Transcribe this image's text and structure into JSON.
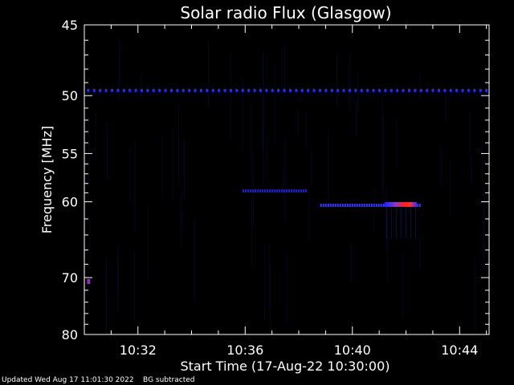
{
  "chart_data": {
    "type": "heatmap",
    "title": "Solar radio Flux (Glasgow)",
    "xlabel": "Start Time (17-Aug-22 10:30:00)",
    "ylabel": "Frequency [MHz]",
    "x_range_minutes": [
      10.5,
      15.1
    ],
    "y_range_mhz": [
      45,
      80
    ],
    "x_ticks": [
      {
        "minute": 32,
        "label": "10:32"
      },
      {
        "minute": 36,
        "label": "10:36"
      },
      {
        "minute": 40,
        "label": "10:40"
      },
      {
        "minute": 44,
        "label": "10:44"
      }
    ],
    "y_ticks": [
      {
        "mhz": 45,
        "label": "45"
      },
      {
        "mhz": 50,
        "label": "50"
      },
      {
        "mhz": 55,
        "label": "55"
      },
      {
        "mhz": 60,
        "label": "60"
      },
      {
        "mhz": 70,
        "label": "70"
      },
      {
        "mhz": 80,
        "label": "80"
      }
    ],
    "emission_features": [
      {
        "name": "interference-line",
        "freq_mhz": 49.6,
        "start_min": 30.1,
        "end_min": 45.0,
        "intensity": "low"
      },
      {
        "name": "band-1",
        "freq_mhz": 58.8,
        "start_min": 35.9,
        "end_min": 38.3,
        "intensity": "low"
      },
      {
        "name": "band-2",
        "freq_mhz": 60.4,
        "start_min": 38.8,
        "end_min": 42.5,
        "intensity": "medium"
      },
      {
        "name": "burst-peak",
        "freq_mhz": 60.3,
        "start_min": 41.2,
        "end_min": 42.4,
        "intensity": "high"
      },
      {
        "name": "spot",
        "freq_mhz": 70.6,
        "start_min": 30.1,
        "end_min": 30.2,
        "intensity": "medium"
      }
    ]
  },
  "footer": {
    "updated": "Updated Wed Aug 17 11:01:30 2022",
    "note": "BG subtracted"
  }
}
